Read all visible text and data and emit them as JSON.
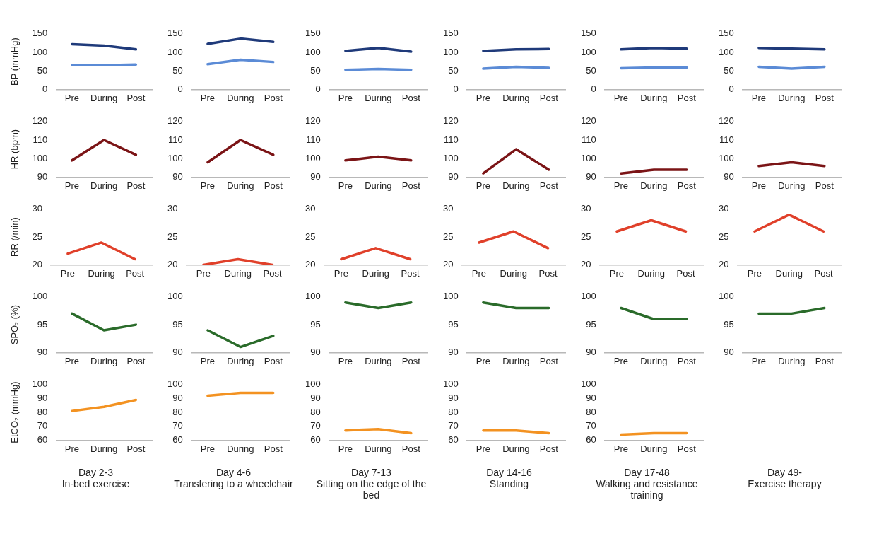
{
  "chart_data": [
    {
      "type": "line",
      "ylabel": "BP (mmHg)",
      "categories": [
        "Pre",
        "During",
        "Post"
      ],
      "ylim": [
        0,
        150
      ],
      "yticks": [
        0,
        50,
        100,
        150
      ],
      "series": [
        {
          "color": "#1f3a7a",
          "values": [
            122,
            118,
            108
          ]
        },
        {
          "color": "#5b8bd6",
          "values": [
            65,
            65,
            67
          ]
        }
      ]
    },
    {
      "type": "line",
      "categories": [
        "Pre",
        "During",
        "Post"
      ],
      "ylim": [
        0,
        150
      ],
      "yticks": [
        0,
        50,
        100,
        150
      ],
      "series": [
        {
          "color": "#1f3a7a",
          "values": [
            123,
            137,
            128
          ]
        },
        {
          "color": "#5b8bd6",
          "values": [
            68,
            80,
            74
          ]
        }
      ]
    },
    {
      "type": "line",
      "categories": [
        "Pre",
        "During",
        "Post"
      ],
      "ylim": [
        0,
        150
      ],
      "yticks": [
        0,
        50,
        100,
        150
      ],
      "series": [
        {
          "color": "#1f3a7a",
          "values": [
            104,
            112,
            102
          ]
        },
        {
          "color": "#5b8bd6",
          "values": [
            53,
            55,
            53
          ]
        }
      ]
    },
    {
      "type": "line",
      "categories": [
        "Pre",
        "During",
        "Post"
      ],
      "ylim": [
        0,
        150
      ],
      "yticks": [
        0,
        50,
        100,
        150
      ],
      "series": [
        {
          "color": "#1f3a7a",
          "values": [
            104,
            108,
            109
          ]
        },
        {
          "color": "#5b8bd6",
          "values": [
            56,
            61,
            58
          ]
        }
      ]
    },
    {
      "type": "line",
      "categories": [
        "Pre",
        "During",
        "Post"
      ],
      "ylim": [
        0,
        150
      ],
      "yticks": [
        0,
        50,
        100,
        150
      ],
      "series": [
        {
          "color": "#1f3a7a",
          "values": [
            108,
            112,
            110
          ]
        },
        {
          "color": "#5b8bd6",
          "values": [
            57,
            59,
            59
          ]
        }
      ]
    },
    {
      "type": "line",
      "categories": [
        "Pre",
        "During",
        "Post"
      ],
      "ylim": [
        0,
        150
      ],
      "yticks": [
        0,
        50,
        100,
        150
      ],
      "series": [
        {
          "color": "#1f3a7a",
          "values": [
            112,
            110,
            108
          ]
        },
        {
          "color": "#5b8bd6",
          "values": [
            61,
            56,
            61
          ]
        }
      ]
    },
    {
      "type": "line",
      "ylabel": "HR (bpm)",
      "categories": [
        "Pre",
        "During",
        "Post"
      ],
      "ylim": [
        90,
        120
      ],
      "yticks": [
        90,
        100,
        110,
        120
      ],
      "series": [
        {
          "color": "#7b1416",
          "values": [
            99,
            110,
            102
          ]
        }
      ]
    },
    {
      "type": "line",
      "categories": [
        "Pre",
        "During",
        "Post"
      ],
      "ylim": [
        90,
        120
      ],
      "yticks": [
        90,
        100,
        110,
        120
      ],
      "series": [
        {
          "color": "#7b1416",
          "values": [
            98,
            110,
            102
          ]
        }
      ]
    },
    {
      "type": "line",
      "categories": [
        "Pre",
        "During",
        "Post"
      ],
      "ylim": [
        90,
        120
      ],
      "yticks": [
        90,
        100,
        110,
        120
      ],
      "series": [
        {
          "color": "#7b1416",
          "values": [
            99,
            101,
            99
          ]
        }
      ]
    },
    {
      "type": "line",
      "categories": [
        "Pre",
        "During",
        "Post"
      ],
      "ylim": [
        90,
        120
      ],
      "yticks": [
        90,
        100,
        110,
        120
      ],
      "series": [
        {
          "color": "#7b1416",
          "values": [
            92,
            105,
            94
          ]
        }
      ]
    },
    {
      "type": "line",
      "categories": [
        "Pre",
        "During",
        "Post"
      ],
      "ylim": [
        90,
        120
      ],
      "yticks": [
        90,
        100,
        110,
        120
      ],
      "series": [
        {
          "color": "#7b1416",
          "values": [
            92,
            94,
            94
          ]
        }
      ]
    },
    {
      "type": "line",
      "categories": [
        "Pre",
        "During",
        "Post"
      ],
      "ylim": [
        90,
        120
      ],
      "yticks": [
        90,
        100,
        110,
        120
      ],
      "series": [
        {
          "color": "#7b1416",
          "values": [
            96,
            98,
            96
          ]
        }
      ]
    },
    {
      "type": "line",
      "ylabel": "RR (/min)",
      "categories": [
        "Pre",
        "During",
        "Post"
      ],
      "ylim": [
        20,
        30
      ],
      "yticks": [
        20,
        25,
        30
      ],
      "series": [
        {
          "color": "#e0402a",
          "values": [
            22,
            24,
            21
          ]
        }
      ]
    },
    {
      "type": "line",
      "categories": [
        "Pre",
        "During",
        "Post"
      ],
      "ylim": [
        20,
        30
      ],
      "yticks": [
        20,
        25,
        30
      ],
      "series": [
        {
          "color": "#e0402a",
          "values": [
            20,
            21,
            20
          ]
        }
      ]
    },
    {
      "type": "line",
      "categories": [
        "Pre",
        "During",
        "Post"
      ],
      "ylim": [
        20,
        30
      ],
      "yticks": [
        20,
        25,
        30
      ],
      "series": [
        {
          "color": "#e0402a",
          "values": [
            21,
            23,
            21
          ]
        }
      ]
    },
    {
      "type": "line",
      "categories": [
        "Pre",
        "During",
        "Post"
      ],
      "ylim": [
        20,
        30
      ],
      "yticks": [
        20,
        25,
        30
      ],
      "series": [
        {
          "color": "#e0402a",
          "values": [
            24,
            26,
            23
          ]
        }
      ]
    },
    {
      "type": "line",
      "categories": [
        "Pre",
        "During",
        "Post"
      ],
      "ylim": [
        20,
        30
      ],
      "yticks": [
        20,
        25,
        30
      ],
      "series": [
        {
          "color": "#e0402a",
          "values": [
            26,
            28,
            26
          ]
        }
      ]
    },
    {
      "type": "line",
      "categories": [
        "Pre",
        "During",
        "Post"
      ],
      "ylim": [
        20,
        30
      ],
      "yticks": [
        20,
        25,
        30
      ],
      "series": [
        {
          "color": "#e0402a",
          "values": [
            26,
            29,
            26
          ]
        }
      ]
    },
    {
      "type": "line",
      "ylabel": "SPO₂ (%)",
      "categories": [
        "Pre",
        "During",
        "Post"
      ],
      "ylim": [
        90,
        100
      ],
      "yticks": [
        90,
        95,
        100
      ],
      "series": [
        {
          "color": "#2a6b2a",
          "values": [
            97,
            94,
            95
          ]
        }
      ]
    },
    {
      "type": "line",
      "categories": [
        "Pre",
        "During",
        "Post"
      ],
      "ylim": [
        90,
        100
      ],
      "yticks": [
        90,
        95,
        100
      ],
      "series": [
        {
          "color": "#2a6b2a",
          "values": [
            94,
            91,
            93
          ]
        }
      ]
    },
    {
      "type": "line",
      "categories": [
        "Pre",
        "During",
        "Post"
      ],
      "ylim": [
        90,
        100
      ],
      "yticks": [
        90,
        95,
        100
      ],
      "series": [
        {
          "color": "#2a6b2a",
          "values": [
            99,
            98,
            99
          ]
        }
      ]
    },
    {
      "type": "line",
      "categories": [
        "Pre",
        "During",
        "Post"
      ],
      "ylim": [
        90,
        100
      ],
      "yticks": [
        90,
        95,
        100
      ],
      "series": [
        {
          "color": "#2a6b2a",
          "values": [
            99,
            98,
            98
          ]
        }
      ]
    },
    {
      "type": "line",
      "categories": [
        "Pre",
        "During",
        "Post"
      ],
      "ylim": [
        90,
        100
      ],
      "yticks": [
        90,
        95,
        100
      ],
      "series": [
        {
          "color": "#2a6b2a",
          "values": [
            98,
            96,
            96
          ]
        }
      ]
    },
    {
      "type": "line",
      "xlabel": "Day 49-\nExercise therapy",
      "categories": [
        "Pre",
        "During",
        "Post"
      ],
      "ylim": [
        90,
        100
      ],
      "yticks": [
        90,
        95,
        100
      ],
      "series": [
        {
          "color": "#2a6b2a",
          "values": [
            97,
            97,
            98
          ]
        }
      ]
    },
    {
      "type": "line",
      "ylabel": "EtCO₂ (mmHg)",
      "xlabel": "Day 2-3\nIn-bed exercise",
      "categories": [
        "Pre",
        "During",
        "Post"
      ],
      "ylim": [
        60,
        100
      ],
      "yticks": [
        60,
        70,
        80,
        90,
        100
      ],
      "series": [
        {
          "color": "#f39221",
          "values": [
            81,
            84,
            89
          ]
        }
      ]
    },
    {
      "type": "line",
      "xlabel": "Day 4-6\nTransfering to a wheelchair",
      "categories": [
        "Pre",
        "During",
        "Post"
      ],
      "ylim": [
        60,
        100
      ],
      "yticks": [
        60,
        70,
        80,
        90,
        100
      ],
      "series": [
        {
          "color": "#f39221",
          "values": [
            92,
            94,
            94
          ]
        }
      ]
    },
    {
      "type": "line",
      "xlabel": "Day 7-13\nSitting on the edge of the bed",
      "categories": [
        "Pre",
        "During",
        "Post"
      ],
      "ylim": [
        60,
        100
      ],
      "yticks": [
        60,
        70,
        80,
        90,
        100
      ],
      "series": [
        {
          "color": "#f39221",
          "values": [
            67,
            68,
            65
          ]
        }
      ]
    },
    {
      "type": "line",
      "xlabel": "Day 14-16\nStanding",
      "categories": [
        "Pre",
        "During",
        "Post"
      ],
      "ylim": [
        60,
        100
      ],
      "yticks": [
        60,
        70,
        80,
        90,
        100
      ],
      "series": [
        {
          "color": "#f39221",
          "values": [
            67,
            67,
            65
          ]
        }
      ]
    },
    {
      "type": "line",
      "xlabel": "Day 17-48\nWalking and resistance training",
      "categories": [
        "Pre",
        "During",
        "Post"
      ],
      "ylim": [
        60,
        100
      ],
      "yticks": [
        60,
        70,
        80,
        90,
        100
      ],
      "series": [
        {
          "color": "#f39221",
          "values": [
            64,
            65,
            65
          ]
        }
      ]
    }
  ]
}
